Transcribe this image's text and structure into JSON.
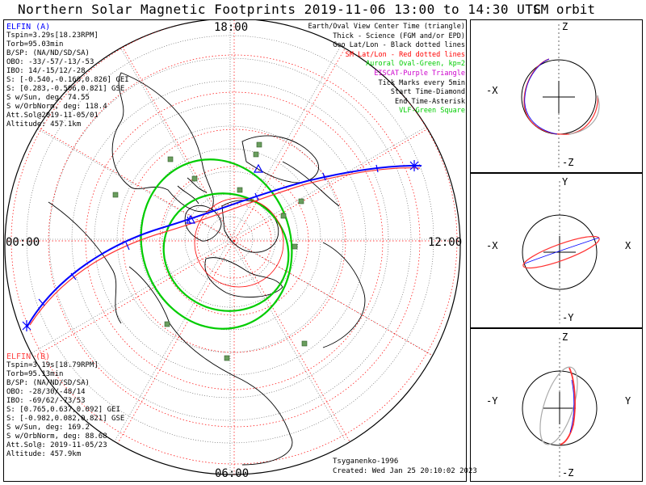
{
  "title": "Northern Solar Magnetic Footprints 2019-11-06 13:00 to 14:30 UTC",
  "sm_orbit_title": "SM orbit",
  "hour_labels": {
    "top": "18:00",
    "left": "00:00",
    "right": "12:00",
    "bottom": "06:00"
  },
  "elfin_a": {
    "header": "ELFIN (A)",
    "lines": [
      "Tspin=3.29s[18.23RPM]",
      "Torb=95.03min",
      "B/SP: (NA/ND/SD/SA)",
      "OBO: -33/-57/-13/-53",
      "IBO: 14/-15/12/-28",
      "S: [-0.540,-0.160,0.826] GEI",
      "S: [0.283,-0.506,0.821] GSE",
      "S w/Sun, deg: 74.55",
      "S w/OrbNorm, deg: 118.4",
      "Att.Sol@2019-11-05/01",
      "Altitude: 457.1km"
    ]
  },
  "elfin_b": {
    "header": "ELFIN (B)",
    "lines": [
      "Tspin=3.19s[18.79RPM]",
      "Torb=95.13min",
      "B/SP: (NA/ND/SD/SA)",
      "OBO: -28/30/-48/14",
      "IBO: -69/62/-73/53",
      "S: [0.765,0.637,0.092] GEI",
      "S: [-0.982,0.082,0.821] GSE",
      "S w/Sun, deg: 169.2",
      "S w/OrbNorm, deg: 88.68",
      "Att.Sol@: 2019-11-05/23",
      "Altitude: 457.9km"
    ]
  },
  "legend": [
    {
      "text": "Earth/Oval View Center Time (triangle)",
      "color": "#000000"
    },
    {
      "text": "Thick - Science (FGM and/or EPD)",
      "color": "#000000"
    },
    {
      "text": "Geo Lat/Lon - Black dotted lines",
      "color": "#000000"
    },
    {
      "text": "SM Lat/Lon - Red dotted lines",
      "color": "#ff0000"
    },
    {
      "text": "Auroral Oval-Green, kp=2",
      "color": "#00cc00"
    },
    {
      "text": "EISCAT-Purple Triangle",
      "color": "#cc00cc"
    },
    {
      "text": "Tick Marks every 5min",
      "color": "#000000"
    },
    {
      "text": "Start Time-Diamond",
      "color": "#000000"
    },
    {
      "text": "End Time-Asterisk",
      "color": "#000000"
    },
    {
      "text": "VLF-Green Square",
      "color": "#00cc00"
    }
  ],
  "credits": {
    "model": "Tsyganenko-1996",
    "created": "Created: Wed Jan 25 20:10:02 2023"
  },
  "sm_panels": [
    {
      "top": "Z",
      "bottom": "-Z",
      "left": "-X",
      "right": ""
    },
    {
      "top": "Y",
      "bottom": "-Y",
      "left": "-X",
      "right": "X"
    },
    {
      "top": "Z",
      "bottom": "-Z",
      "left": "-Y",
      "right": "Y"
    }
  ],
  "colors": {
    "elfin_a": "#0000ff",
    "elfin_b": "#ff0000",
    "oval": "#00cc00",
    "grid_sm": "#ff0000",
    "vlf": "#2e7d32"
  }
}
